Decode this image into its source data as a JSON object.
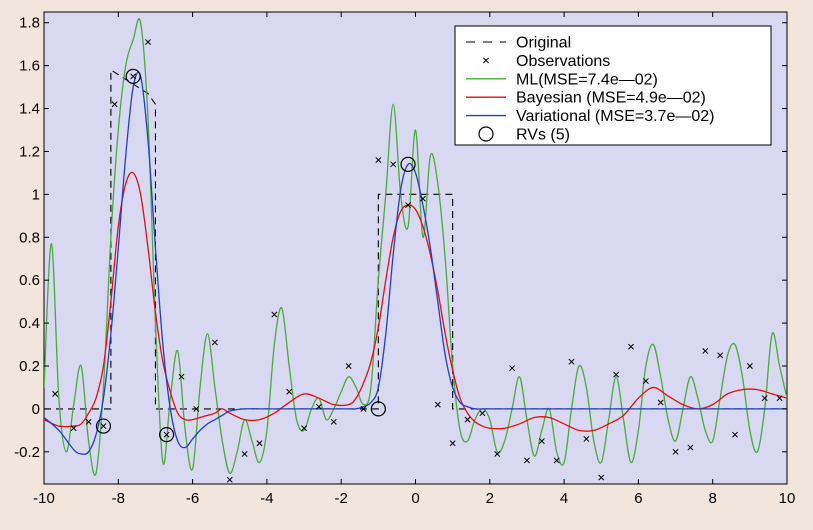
{
  "chart_data": {
    "type": "line",
    "title": "",
    "xlabel": "",
    "ylabel": "",
    "xlim": [
      -10,
      10
    ],
    "ylim": [
      -0.35,
      1.85
    ],
    "grid": false,
    "legend_position": "top-right",
    "x_ticks": [
      -10,
      -8,
      -6,
      -4,
      -2,
      0,
      2,
      4,
      6,
      8,
      10
    ],
    "x_tick_labels": [
      "-10",
      "-8",
      "-6",
      "-4",
      "-2",
      "0",
      "2",
      "4",
      "6",
      "8",
      "10"
    ],
    "y_ticks": [
      -0.2,
      0,
      0.2,
      0.4,
      0.6,
      0.8,
      1,
      1.2,
      1.4,
      1.6,
      1.8
    ],
    "y_tick_labels": [
      "-0.2",
      "0",
      "0.2",
      "0.4",
      "0.6",
      "0.8",
      "1",
      "1.2",
      "1.4",
      "1.6",
      "1.8"
    ],
    "colors": {
      "page_background": "#f2e5dc",
      "plot_background": "#d8d8f0",
      "original": "#000000",
      "observations": "#000000",
      "ml": "#4aaa3c",
      "bayesian": "#e01010",
      "variational": "#2040c0",
      "rvs": "#000000"
    },
    "series": [
      {
        "name": "Original",
        "style": "dashed",
        "x": [
          -10,
          -8.2,
          -8.2,
          -7.2,
          -7.0,
          -7.0,
          -1.0,
          -1.0,
          1.0,
          1.0,
          10
        ],
        "y": [
          0,
          0,
          1.58,
          1.47,
          1.42,
          0,
          0,
          1.0,
          1.0,
          0,
          0
        ]
      },
      {
        "name": "Observations",
        "style": "markers",
        "x": [
          -9.7,
          -9.2,
          -8.8,
          -8.4,
          -8.1,
          -7.6,
          -7.2,
          -6.7,
          -6.3,
          -5.9,
          -5.4,
          -5.0,
          -4.6,
          -4.2,
          -3.8,
          -3.4,
          -3.0,
          -2.6,
          -2.2,
          -1.8,
          -1.4,
          -1.0,
          -0.6,
          -0.2,
          0.2,
          0.6,
          1.0,
          1.4,
          1.8,
          2.2,
          2.6,
          3.0,
          3.4,
          3.8,
          4.2,
          4.6,
          5.0,
          5.4,
          5.8,
          6.2,
          6.6,
          7.0,
          7.4,
          7.8,
          8.2,
          8.6,
          9.0,
          9.4,
          9.8
        ],
        "y": [
          0.07,
          -0.09,
          -0.06,
          -0.08,
          1.42,
          1.55,
          1.71,
          -0.12,
          0.15,
          0.0,
          0.31,
          -0.33,
          -0.21,
          -0.16,
          0.44,
          0.08,
          -0.09,
          0.01,
          -0.06,
          0.2,
          0.0,
          1.16,
          1.14,
          0.95,
          0.98,
          0.02,
          -0.16,
          -0.05,
          -0.02,
          -0.21,
          0.19,
          -0.24,
          -0.15,
          -0.24,
          0.22,
          -0.14,
          -0.32,
          0.16,
          0.29,
          0.13,
          0.03,
          -0.2,
          -0.18,
          0.27,
          0.25,
          -0.12,
          0.2,
          0.05,
          0.05
        ]
      },
      {
        "name": "ML(MSE=7.4e—02)",
        "style": "solid",
        "x": [
          -10.0,
          -9.8,
          -9.6,
          -9.4,
          -9.2,
          -9.0,
          -8.8,
          -8.6,
          -8.4,
          -8.2,
          -8.0,
          -7.8,
          -7.6,
          -7.4,
          -7.2,
          -7.0,
          -6.8,
          -6.6,
          -6.4,
          -6.2,
          -6.0,
          -5.8,
          -5.6,
          -5.4,
          -5.2,
          -5.0,
          -4.8,
          -4.6,
          -4.4,
          -4.2,
          -4.0,
          -3.8,
          -3.6,
          -3.4,
          -3.2,
          -3.0,
          -2.8,
          -2.6,
          -2.4,
          -2.2,
          -2.0,
          -1.8,
          -1.6,
          -1.4,
          -1.2,
          -1.0,
          -0.8,
          -0.6,
          -0.4,
          -0.2,
          0.0,
          0.2,
          0.4,
          0.6,
          0.8,
          1.0,
          1.2,
          1.4,
          1.6,
          1.8,
          2.0,
          2.2,
          2.4,
          2.6,
          2.8,
          3.0,
          3.2,
          3.4,
          3.6,
          3.8,
          4.0,
          4.2,
          4.4,
          4.6,
          4.8,
          5.0,
          5.2,
          5.4,
          5.6,
          5.8,
          6.0,
          6.2,
          6.4,
          6.6,
          6.8,
          7.0,
          7.2,
          7.4,
          7.6,
          7.8,
          8.0,
          8.2,
          8.4,
          8.6,
          8.8,
          9.0,
          9.2,
          9.4,
          9.6,
          9.8,
          10.0
        ],
        "y": [
          0.1,
          0.77,
          0.05,
          -0.2,
          0.02,
          0.2,
          -0.15,
          -0.3,
          0.1,
          0.8,
          1.3,
          1.6,
          1.72,
          1.8,
          1.35,
          0.4,
          -0.25,
          0.05,
          0.27,
          -0.1,
          -0.28,
          0.1,
          0.35,
          0.1,
          -0.15,
          -0.3,
          -0.2,
          -0.05,
          -0.15,
          -0.25,
          -0.1,
          0.3,
          0.47,
          0.2,
          -0.05,
          -0.1,
          0.0,
          0.05,
          -0.05,
          0.0,
          0.08,
          0.15,
          0.1,
          0.02,
          0.1,
          0.6,
          1.0,
          1.42,
          1.0,
          0.85,
          1.3,
          0.8,
          1.18,
          1.05,
          0.7,
          0.2,
          -0.1,
          -0.15,
          -0.05,
          0.0,
          -0.05,
          -0.2,
          -0.15,
          0.0,
          0.15,
          -0.05,
          -0.22,
          -0.1,
          0.0,
          -0.2,
          -0.25,
          0.0,
          0.2,
          0.1,
          -0.15,
          -0.25,
          -0.05,
          0.15,
          -0.05,
          -0.25,
          -0.1,
          0.2,
          0.3,
          0.15,
          -0.05,
          -0.15,
          0.0,
          0.15,
          0.05,
          -0.1,
          -0.15,
          0.05,
          0.25,
          0.3,
          0.15,
          -0.1,
          -0.2,
          0.0,
          0.35,
          0.2,
          0.05
        ]
      },
      {
        "name": "Bayesian (MSE=4.9e—02)",
        "style": "solid",
        "x": [
          -10.0,
          -9.6,
          -9.2,
          -9.0,
          -8.8,
          -8.6,
          -8.4,
          -8.2,
          -8.0,
          -7.8,
          -7.6,
          -7.4,
          -7.2,
          -7.0,
          -6.8,
          -6.6,
          -6.4,
          -6.2,
          -6.0,
          -5.8,
          -5.6,
          -5.4,
          -5.2,
          -5.0,
          -4.6,
          -4.2,
          -3.8,
          -3.4,
          -3.0,
          -2.6,
          -2.2,
          -1.8,
          -1.6,
          -1.4,
          -1.2,
          -1.0,
          -0.8,
          -0.6,
          -0.4,
          -0.2,
          0.0,
          0.2,
          0.4,
          0.6,
          0.8,
          1.0,
          1.2,
          1.4,
          1.6,
          1.8,
          2.0,
          2.4,
          2.8,
          3.2,
          3.6,
          4.0,
          4.4,
          4.8,
          5.2,
          5.6,
          6.0,
          6.4,
          6.8,
          7.2,
          7.6,
          8.0,
          8.4,
          8.8,
          9.2,
          9.6,
          10.0
        ],
        "y": [
          -0.05,
          -0.08,
          -0.08,
          -0.07,
          -0.02,
          0.05,
          0.2,
          0.5,
          0.85,
          1.05,
          1.1,
          1.0,
          0.75,
          0.45,
          0.22,
          0.08,
          -0.02,
          -0.05,
          -0.05,
          -0.04,
          -0.03,
          -0.02,
          0.0,
          -0.02,
          -0.05,
          -0.05,
          -0.02,
          0.03,
          0.07,
          0.05,
          0.02,
          0.02,
          0.05,
          0.12,
          0.22,
          0.38,
          0.6,
          0.8,
          0.92,
          0.95,
          0.93,
          0.85,
          0.72,
          0.55,
          0.35,
          0.18,
          0.05,
          -0.02,
          -0.06,
          -0.08,
          -0.09,
          -0.09,
          -0.07,
          -0.04,
          -0.04,
          -0.07,
          -0.1,
          -0.1,
          -0.07,
          -0.03,
          0.05,
          0.1,
          0.06,
          0.02,
          0.0,
          0.02,
          0.07,
          0.09,
          0.09,
          0.07,
          0.05
        ]
      },
      {
        "name": "Variational (MSE=3.7e—02)",
        "style": "solid",
        "x": [
          -10.0,
          -9.6,
          -9.2,
          -9.0,
          -8.8,
          -8.6,
          -8.4,
          -8.2,
          -8.0,
          -7.8,
          -7.6,
          -7.4,
          -7.2,
          -7.0,
          -6.8,
          -6.6,
          -6.4,
          -6.2,
          -6.0,
          -5.8,
          -5.6,
          -5.4,
          -5.2,
          -5.0,
          -4.6,
          -4.2,
          -3.8,
          -3.4,
          -3.0,
          -2.6,
          -2.2,
          -1.8,
          -1.6,
          -1.4,
          -1.2,
          -1.0,
          -0.8,
          -0.6,
          -0.4,
          -0.2,
          0.0,
          0.2,
          0.4,
          0.6,
          0.8,
          1.0,
          1.2,
          1.4,
          1.6,
          1.8,
          2.0,
          2.4,
          3.0,
          4.0,
          5.0,
          6.0,
          7.0,
          8.0,
          9.0,
          10.0
        ],
        "y": [
          -0.04,
          -0.1,
          -0.19,
          -0.21,
          -0.2,
          -0.12,
          0.05,
          0.35,
          0.75,
          1.18,
          1.5,
          1.55,
          1.25,
          0.75,
          0.3,
          0.0,
          -0.15,
          -0.18,
          -0.14,
          -0.1,
          -0.07,
          -0.05,
          -0.03,
          -0.01,
          0.0,
          0.0,
          0.0,
          0.0,
          0.0,
          0.0,
          0.0,
          0.0,
          0.0,
          0.01,
          0.03,
          0.1,
          0.35,
          0.72,
          1.02,
          1.14,
          1.1,
          0.95,
          0.75,
          0.5,
          0.25,
          0.1,
          0.03,
          0.01,
          0.0,
          0.0,
          0.0,
          0.0,
          0.0,
          0.0,
          0.0,
          0.0,
          0.0,
          0.0,
          0.0,
          0.0
        ]
      },
      {
        "name": "RVs (5)",
        "style": "circles",
        "x": [
          -8.4,
          -7.6,
          -6.7,
          -1.0,
          -0.2
        ],
        "y": [
          -0.08,
          1.55,
          -0.12,
          0.0,
          1.14
        ]
      }
    ]
  }
}
